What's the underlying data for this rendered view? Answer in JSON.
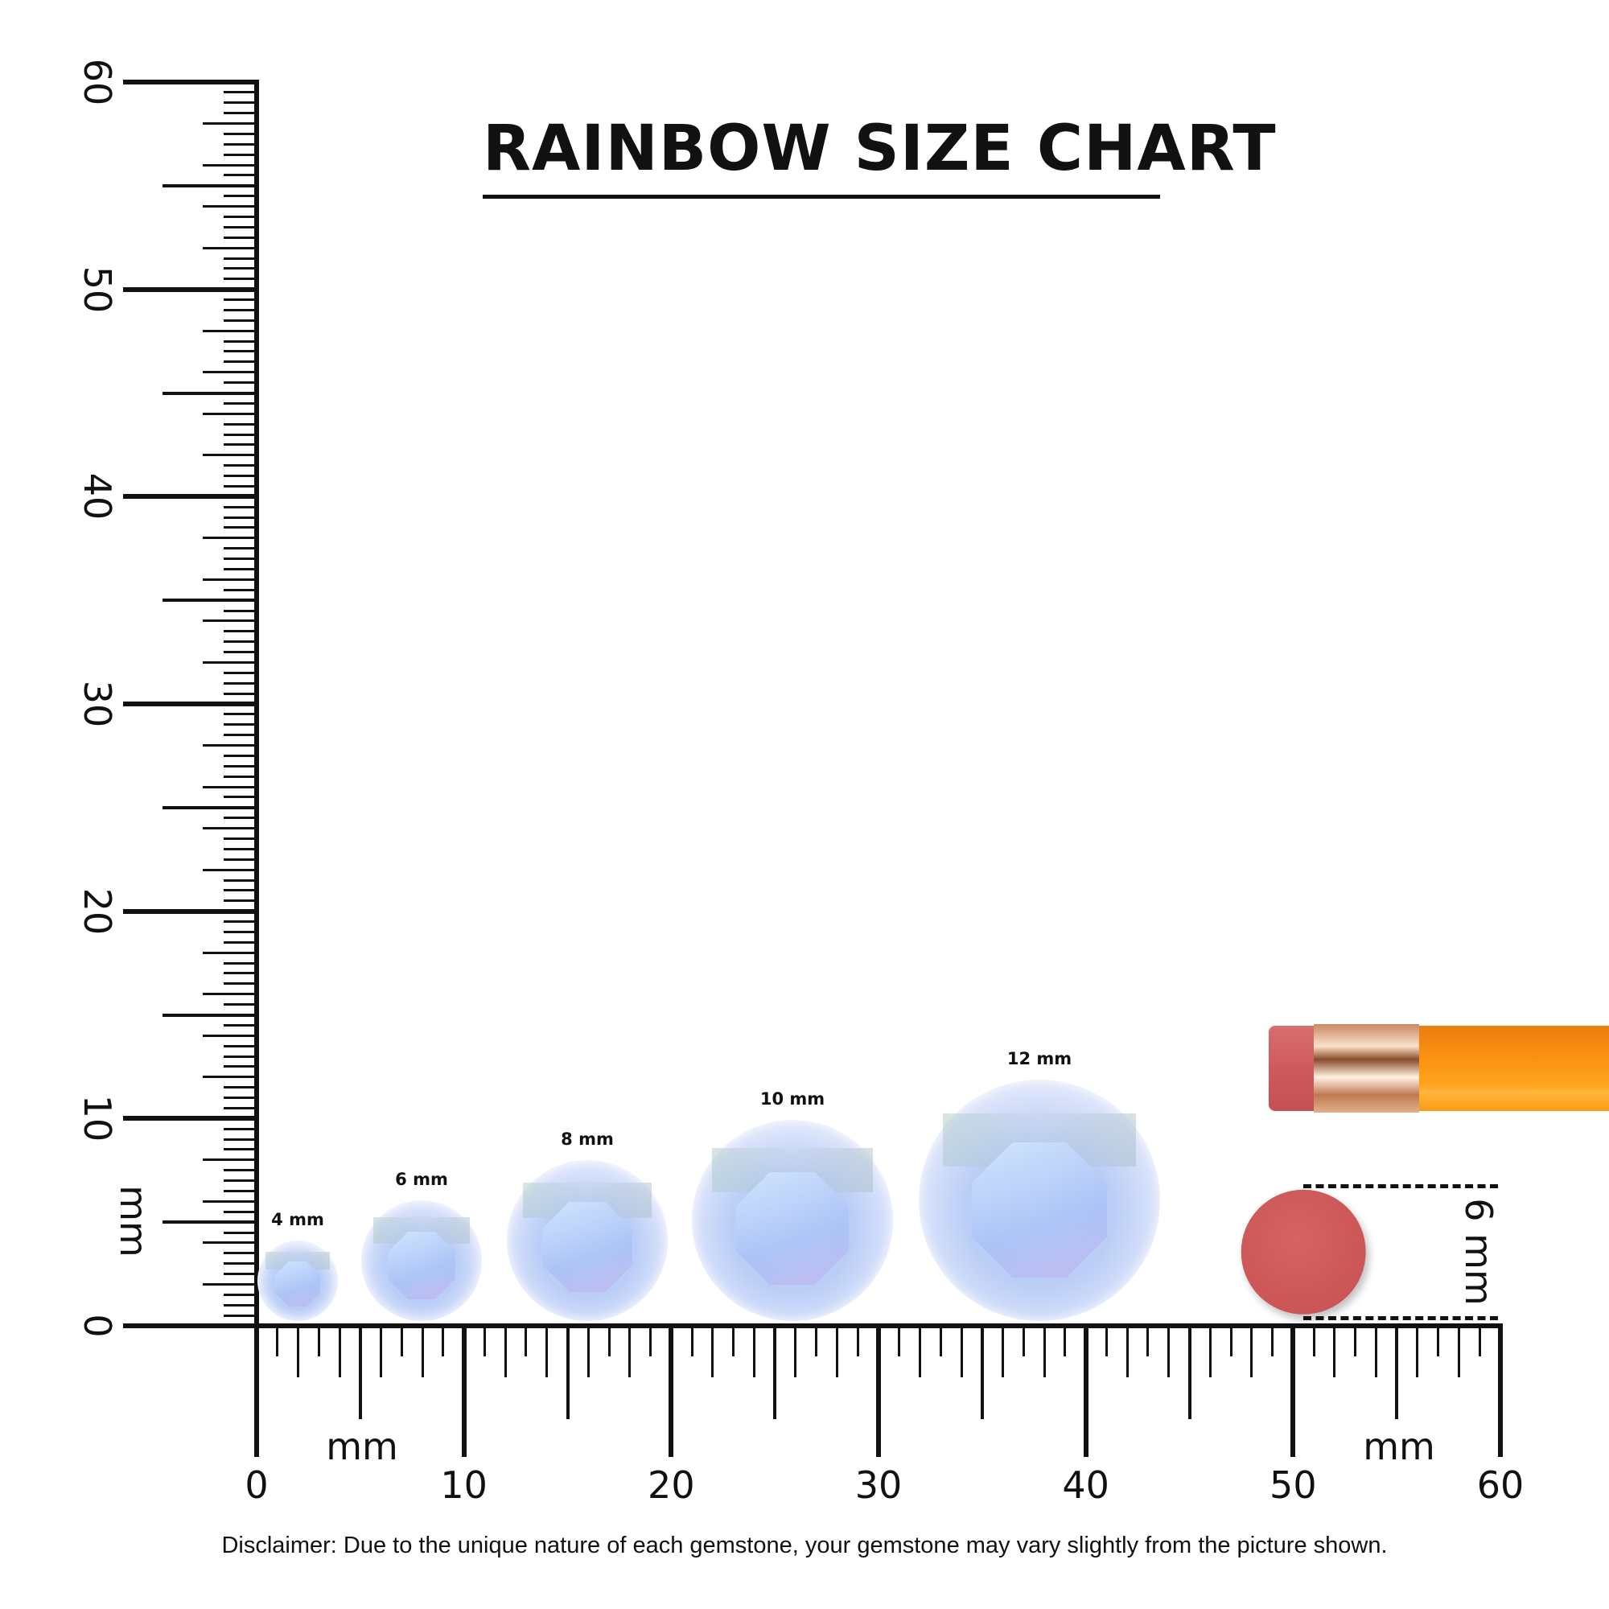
{
  "title": "RAINBOW SIZE CHART",
  "ruler": {
    "unit_label": "mm",
    "min": 0,
    "max": 60,
    "major_step": 10,
    "tick_labels": [
      "0",
      "10",
      "20",
      "30",
      "40",
      "50",
      "60"
    ]
  },
  "gems": [
    {
      "label": "4 mm",
      "size_mm": 4
    },
    {
      "label": "6 mm",
      "size_mm": 6
    },
    {
      "label": "8 mm",
      "size_mm": 8
    },
    {
      "label": "10 mm",
      "size_mm": 10
    },
    {
      "label": "12 mm",
      "size_mm": 12
    }
  ],
  "reference": {
    "label": "6 mm",
    "size_mm": 6,
    "color": "#cf5858"
  },
  "colors": {
    "ruler": "#111111",
    "pencil_body": "#f99512",
    "gem": "#b9cdf6"
  },
  "disclaimer": "Disclaimer: Due to the unique nature of each gemstone, your gemstone may vary slightly from the picture shown."
}
